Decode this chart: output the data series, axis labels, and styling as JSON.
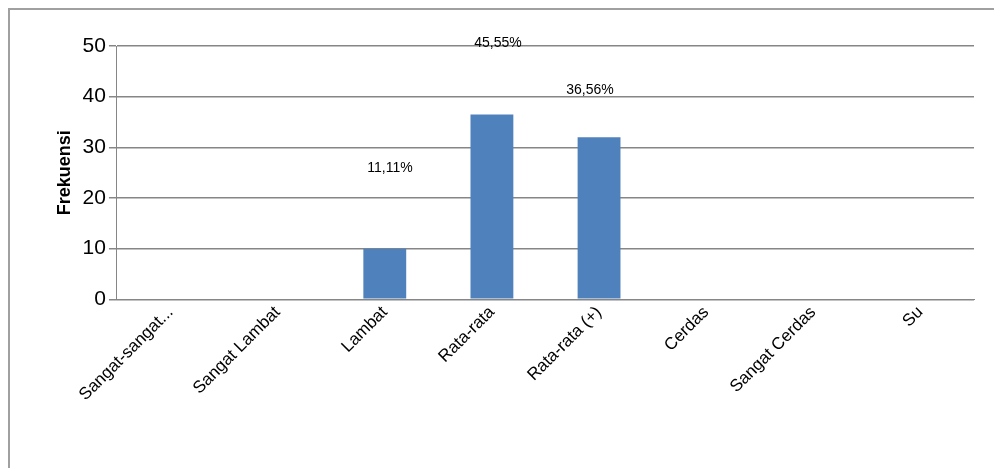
{
  "chart_data": {
    "type": "bar",
    "ylabel": "Frekuensi",
    "categories": [
      "Sangat-sangat...",
      "Sangat Lambat",
      "Lambat",
      "Rata-rata",
      "Rata-rata (+)",
      "Cerdas",
      "Sangat Cerdas",
      "Su"
    ],
    "values": [
      0,
      0,
      10,
      36.5,
      32,
      0,
      0,
      0
    ],
    "color": "#4f81bd",
    "ylim": [
      0,
      50
    ],
    "yticks": [
      0,
      10,
      20,
      30,
      40,
      50
    ],
    "grid": "y",
    "annotations": [
      "11,11%",
      "45,55%",
      "36,56%"
    ]
  }
}
